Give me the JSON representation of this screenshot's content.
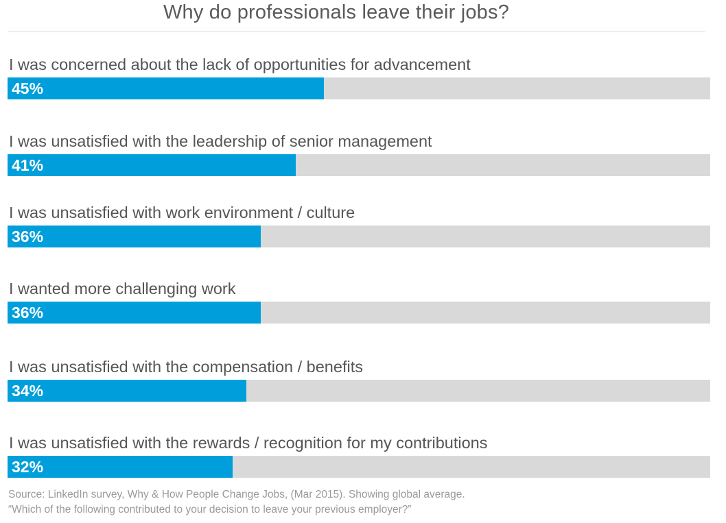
{
  "chart_data": {
    "type": "bar",
    "orientation": "horizontal",
    "title": "Why do professionals leave their jobs?",
    "xlim": [
      0,
      100
    ],
    "categories": [
      "I was concerned about the lack of opportunities for advancement",
      "I was unsatisfied with the leadership of senior management",
      "I was unsatisfied with work environment / culture",
      "I wanted more challenging work",
      "I was unsatisfied with the compensation / benefits",
      "I was unsatisfied with the rewards / recognition for my contributions"
    ],
    "values": [
      45,
      41,
      36,
      36,
      34,
      32
    ],
    "value_labels": [
      "45%",
      "41%",
      "36%",
      "36%",
      "34%",
      "32%"
    ],
    "colors": {
      "bar": "#009fdb",
      "track": "#d9d9d9"
    },
    "grid": false,
    "legend": "none"
  },
  "source": {
    "line1": "Source: LinkedIn survey, Why & How People Change Jobs, (Mar 2015). Showing global average.",
    "line2": "“Which of the following contributed to your decision to leave your previous employer?”"
  }
}
